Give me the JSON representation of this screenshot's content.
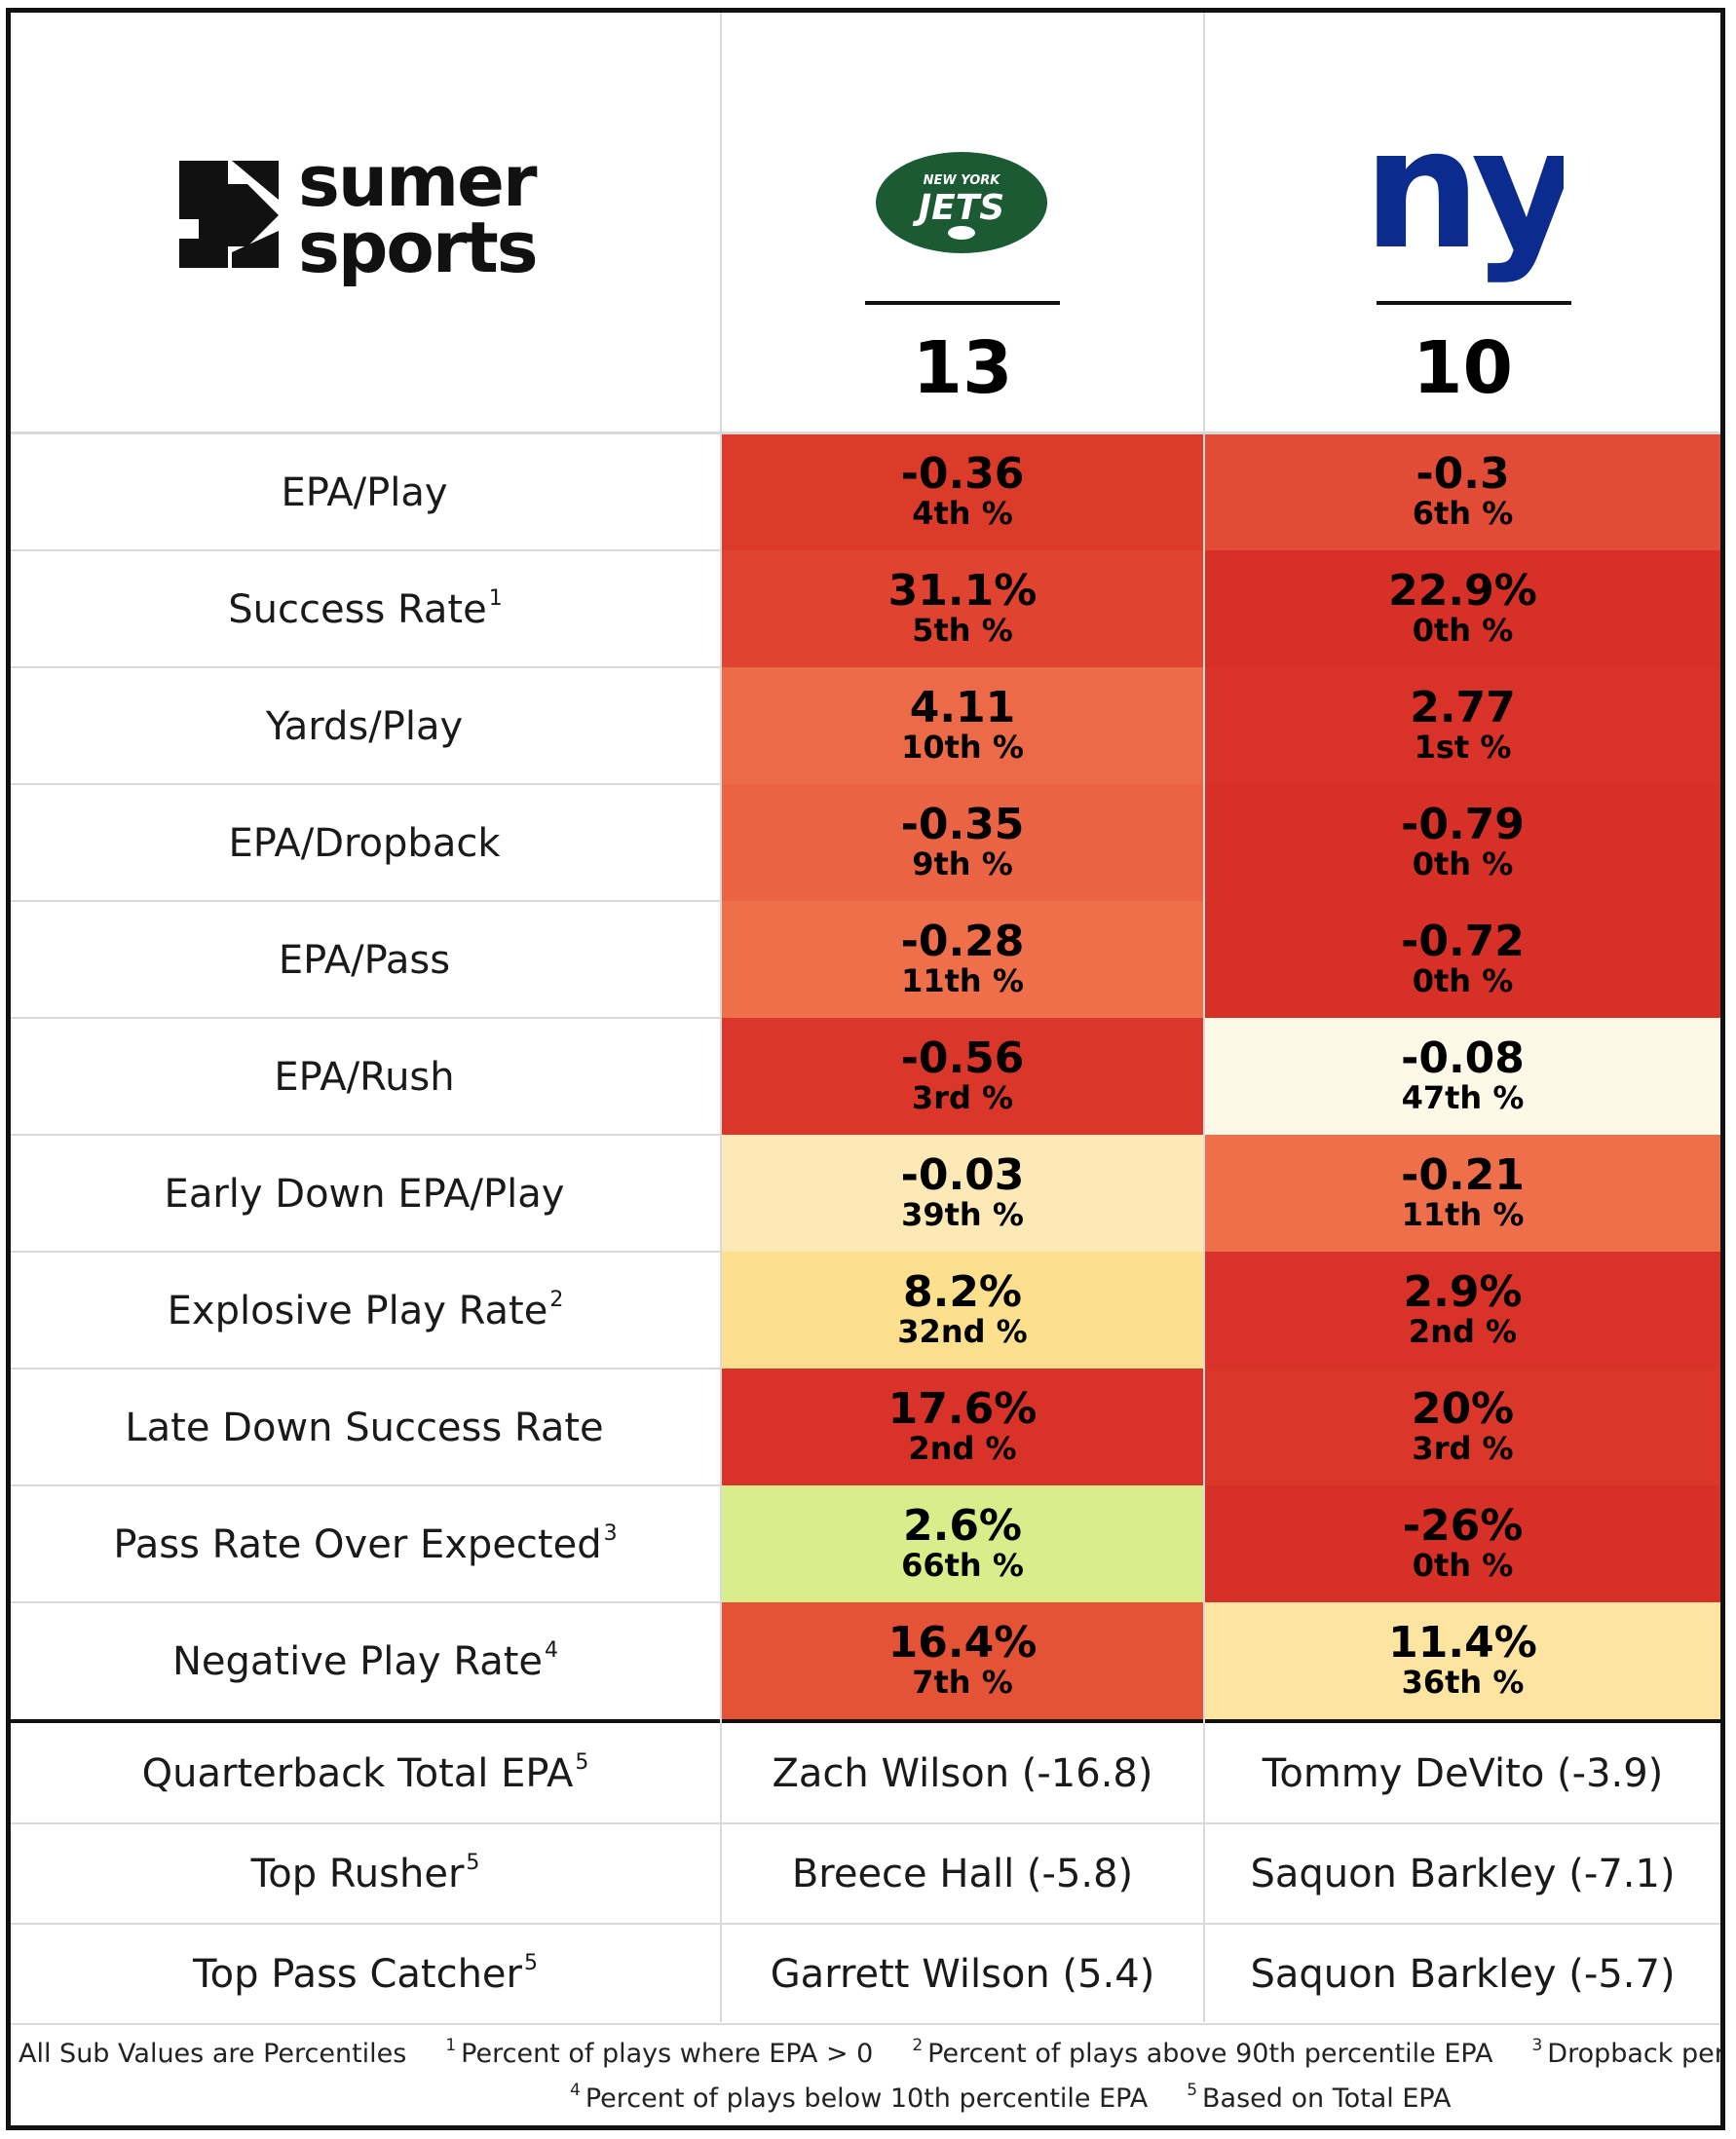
{
  "brand": {
    "line1": "sumer",
    "line2": "sports"
  },
  "teams": [
    {
      "name": "New York Jets",
      "logo_top": "NEW YORK",
      "logo_word": "JETS",
      "score": "13",
      "color": "#1c5a33"
    },
    {
      "name": "New York Giants",
      "logo_word": "ny",
      "score": "10",
      "color": "#0b2b8f"
    }
  ],
  "metrics": [
    {
      "label": "EPA/Play",
      "note": "",
      "jets": {
        "value": "-0.36",
        "pct": "4th %",
        "color": "#dd3b2a"
      },
      "giants": {
        "value": "-0.3",
        "pct": "6th %",
        "color": "#e24b35"
      }
    },
    {
      "label": "Success Rate",
      "note": "1",
      "jets": {
        "value": "31.1%",
        "pct": "5th %",
        "color": "#e0432f"
      },
      "giants": {
        "value": "22.9%",
        "pct": "0th %",
        "color": "#d73027"
      }
    },
    {
      "label": "Yards/Play",
      "note": "",
      "jets": {
        "value": "4.11",
        "pct": "10th %",
        "color": "#ec6a47"
      },
      "giants": {
        "value": "2.77",
        "pct": "1st %",
        "color": "#d93228"
      }
    },
    {
      "label": "EPA/Dropback",
      "note": "",
      "jets": {
        "value": "-0.35",
        "pct": "9th %",
        "color": "#ea6443"
      },
      "giants": {
        "value": "-0.79",
        "pct": "0th %",
        "color": "#d73027"
      }
    },
    {
      "label": "EPA/Pass",
      "note": "",
      "jets": {
        "value": "-0.28",
        "pct": "11th %",
        "color": "#ee6f4a"
      },
      "giants": {
        "value": "-0.72",
        "pct": "0th %",
        "color": "#d73027"
      }
    },
    {
      "label": "EPA/Rush",
      "note": "",
      "jets": {
        "value": "-0.56",
        "pct": "3rd %",
        "color": "#db362a"
      },
      "giants": {
        "value": "-0.08",
        "pct": "47th %",
        "color": "#fdf8e8"
      }
    },
    {
      "label": "Early Down EPA/Play",
      "note": "",
      "jets": {
        "value": "-0.03",
        "pct": "39th %",
        "color": "#fde9b6"
      },
      "giants": {
        "value": "-0.21",
        "pct": "11th %",
        "color": "#ee6f4a"
      }
    },
    {
      "label": "Explosive Play Rate",
      "note": "2",
      "jets": {
        "value": "8.2%",
        "pct": "32nd %",
        "color": "#fde08e"
      },
      "giants": {
        "value": "2.9%",
        "pct": "2nd %",
        "color": "#d93228"
      }
    },
    {
      "label": "Late Down Success Rate",
      "note": "",
      "jets": {
        "value": "17.6%",
        "pct": "2nd %",
        "color": "#d93228"
      },
      "giants": {
        "value": "20%",
        "pct": "3rd %",
        "color": "#db362a"
      }
    },
    {
      "label": "Pass Rate Over Expected",
      "note": "3",
      "jets": {
        "value": "2.6%",
        "pct": "66th %",
        "color": "#d9ee8a"
      },
      "giants": {
        "value": "-26%",
        "pct": "0th %",
        "color": "#d73027"
      }
    },
    {
      "label": "Negative Play Rate",
      "note": "4",
      "jets": {
        "value": "16.4%",
        "pct": "7th %",
        "color": "#e45336"
      },
      "giants": {
        "value": "11.4%",
        "pct": "36th %",
        "color": "#fde4a0"
      }
    }
  ],
  "players": [
    {
      "label": "Quarterback Total EPA",
      "note": "5",
      "jets": "Zach Wilson (-16.8)",
      "giants": "Tommy DeVito (-3.9)"
    },
    {
      "label": "Top Rusher",
      "note": "5",
      "jets": "Breece Hall (-5.8)",
      "giants": "Saquon Barkley (-7.1)"
    },
    {
      "label": "Top Pass Catcher",
      "note": "5",
      "jets": "Garrett Wilson (5.4)",
      "giants": "Saquon Barkley (-5.7)"
    }
  ],
  "footnotes": {
    "lead": "All Sub Values are Percentiles",
    "items": [
      {
        "mark": "1",
        "text": "Percent of plays where EPA > 0"
      },
      {
        "mark": "2",
        "text": "Percent of plays above 90th percentile EPA"
      },
      {
        "mark": "3",
        "text": "Dropback percent over expected based on game situation"
      },
      {
        "mark": "4",
        "text": "Percent of plays below 10th percentile EPA"
      },
      {
        "mark": "5",
        "text": "Based on Total EPA"
      }
    ]
  },
  "chart_data": {
    "type": "table",
    "columns": [
      "",
      "New York Jets",
      "New York Giants"
    ],
    "scores": {
      "jets": 13,
      "giants": 10
    },
    "rows": [
      {
        "metric": "EPA/Play",
        "jets": -0.36,
        "jets_pct": 4,
        "giants": -0.3,
        "giants_pct": 6
      },
      {
        "metric": "Success Rate",
        "jets": 31.1,
        "jets_pct": 5,
        "giants": 22.9,
        "giants_pct": 0
      },
      {
        "metric": "Yards/Play",
        "jets": 4.11,
        "jets_pct": 10,
        "giants": 2.77,
        "giants_pct": 1
      },
      {
        "metric": "EPA/Dropback",
        "jets": -0.35,
        "jets_pct": 9,
        "giants": -0.79,
        "giants_pct": 0
      },
      {
        "metric": "EPA/Pass",
        "jets": -0.28,
        "jets_pct": 11,
        "giants": -0.72,
        "giants_pct": 0
      },
      {
        "metric": "EPA/Rush",
        "jets": -0.56,
        "jets_pct": 3,
        "giants": -0.08,
        "giants_pct": 47
      },
      {
        "metric": "Early Down EPA/Play",
        "jets": -0.03,
        "jets_pct": 39,
        "giants": -0.21,
        "giants_pct": 11
      },
      {
        "metric": "Explosive Play Rate",
        "jets": 8.2,
        "jets_pct": 32,
        "giants": 2.9,
        "giants_pct": 2
      },
      {
        "metric": "Late Down Success Rate",
        "jets": 17.6,
        "jets_pct": 2,
        "giants": 20,
        "giants_pct": 3
      },
      {
        "metric": "Pass Rate Over Expected",
        "jets": 2.6,
        "jets_pct": 66,
        "giants": -26,
        "giants_pct": 0
      },
      {
        "metric": "Negative Play Rate",
        "jets": 16.4,
        "jets_pct": 7,
        "giants": 11.4,
        "giants_pct": 36
      }
    ]
  }
}
